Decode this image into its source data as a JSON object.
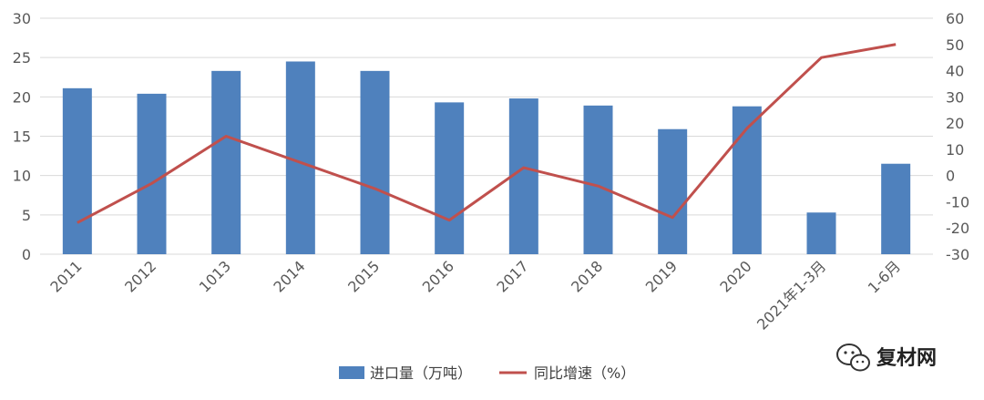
{
  "chart_data": {
    "type": "bar+line",
    "categories": [
      "2011",
      "2012",
      "1013",
      "2014",
      "2015",
      "2016",
      "2017",
      "2018",
      "2019",
      "2020",
      "2021年1-3月",
      "1-6月"
    ],
    "series": [
      {
        "name": "进口量（万吨）",
        "type": "bar",
        "axis": "left",
        "values": [
          21.1,
          20.4,
          23.3,
          24.5,
          23.3,
          19.3,
          19.8,
          18.9,
          15.9,
          18.8,
          5.3,
          11.5
        ]
      },
      {
        "name": "同比增速（%）",
        "type": "line",
        "axis": "right",
        "values": [
          -18,
          -3,
          15,
          5,
          -5,
          -17,
          3,
          -4,
          -16,
          18,
          45,
          50
        ]
      }
    ],
    "y_left": {
      "min": 0,
      "max": 30,
      "ticks": [
        "0",
        "5",
        "10",
        "15",
        "20",
        "25",
        "30"
      ]
    },
    "y_right": {
      "min": -30,
      "max": 60,
      "ticks": [
        "-30",
        "-20",
        "-10",
        "0",
        "10",
        "20",
        "30",
        "40",
        "50",
        "60"
      ]
    },
    "grid": true,
    "legend_position": "bottom",
    "colors": {
      "bar": "#4f81bd",
      "line": "#c0504d",
      "grid": "#d9d9d9"
    }
  },
  "watermark": {
    "text": "复材网",
    "icon": "wechat-icon"
  }
}
